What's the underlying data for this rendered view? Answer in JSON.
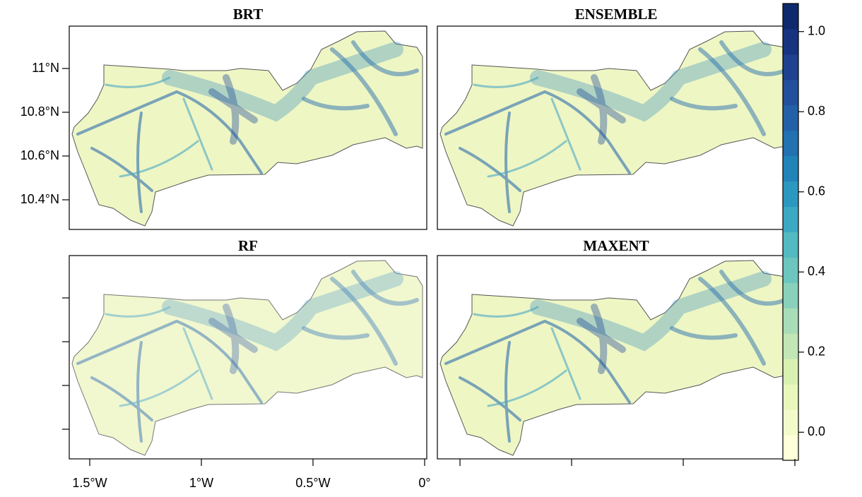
{
  "panels": [
    {
      "title": "BRT"
    },
    {
      "title": "ENSEMBLE"
    },
    {
      "title": "RF"
    },
    {
      "title": "MAXENT"
    }
  ],
  "lat_ticks": [
    {
      "value": 11,
      "label": "11°N"
    },
    {
      "value": 10.8,
      "label": "10.8°N"
    },
    {
      "value": 10.6,
      "label": "10.6°N"
    },
    {
      "value": 10.4,
      "label": "10.4°N"
    }
  ],
  "lon_ticks": [
    {
      "value": -1.5,
      "label": "1.5°W"
    },
    {
      "value": -1,
      "label": "1°W"
    },
    {
      "value": -0.5,
      "label": "0.5°W"
    },
    {
      "value": 0,
      "label": "0°"
    }
  ],
  "colorbar": {
    "lim": [
      -0.07,
      1.07
    ],
    "ticks": [
      {
        "value": 0,
        "label": "0.0"
      },
      0.2,
      0.4,
      0.6,
      0.8,
      {
        "value": 1,
        "label": "1.0"
      }
    ],
    "colors": [
      "#ffffd9",
      "#f4fbcb",
      "#e9f7bd",
      "#d9f0b3",
      "#c2e7b5",
      "#a9ddb7",
      "#8ad1bb",
      "#6cc5be",
      "#52bac1",
      "#3ca9c2",
      "#2c98c0",
      "#2184b9",
      "#2271b1",
      "#2460a7",
      "#23509c",
      "#1f418f",
      "#173480",
      "#0e2a6d"
    ]
  }
}
